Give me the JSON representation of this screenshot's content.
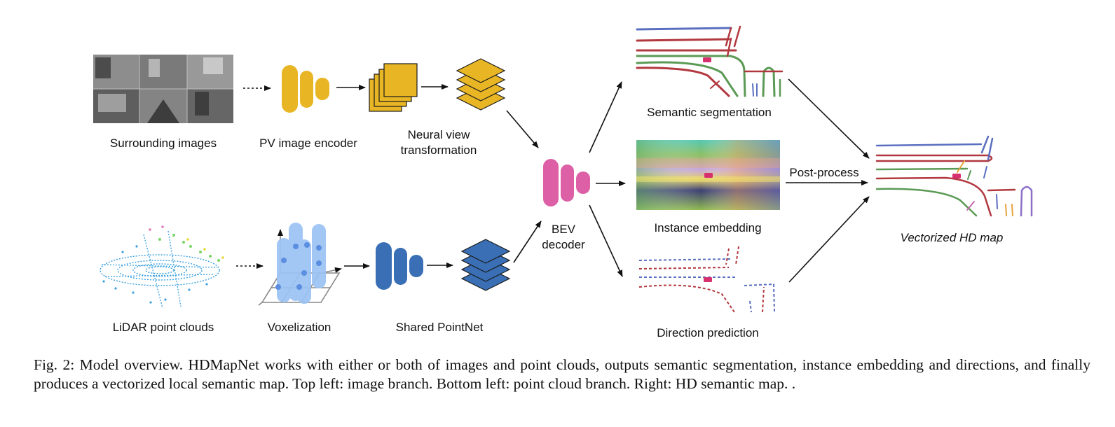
{
  "diagram": {
    "labels": {
      "surrounding_images": "Surrounding images",
      "pv_image_encoder": "PV image encoder",
      "neural_view_1": "Neural view",
      "neural_view_2": "transformation",
      "lidar": "LiDAR point clouds",
      "voxelization": "Voxelization",
      "shared_pointnet": "Shared PointNet",
      "bev_1": "BEV",
      "bev_2": "decoder",
      "semantic_segmentation": "Semantic segmentation",
      "instance_embedding": "Instance embedding",
      "direction_prediction": "Direction prediction",
      "post_process": "Post-process",
      "vectorized_map": "Vectorized HD map"
    },
    "colors": {
      "image_branch": "#e8b625",
      "lidar_branch": "#3a6fb5",
      "voxel": "#9cc3f5",
      "bev_decoder": "#dd5fa6",
      "lane_green": "#5b9a55",
      "lane_red": "#b2383f",
      "lane_blue": "#5a6fc0"
    },
    "icons": {
      "car": "car-icon",
      "encoder": "encoder-icon",
      "feature_stack": "feature-stack-icon",
      "layer_stack": "layer-stack-icon"
    }
  },
  "caption": "Fig. 2: Model overview. HDMapNet works with either or both of images and point clouds, outputs semantic segmentation, instance embedding and directions, and finally produces a vectorized local semantic map. Top left: image branch. Bottom left: point cloud branch. Right: HD semantic map. ."
}
